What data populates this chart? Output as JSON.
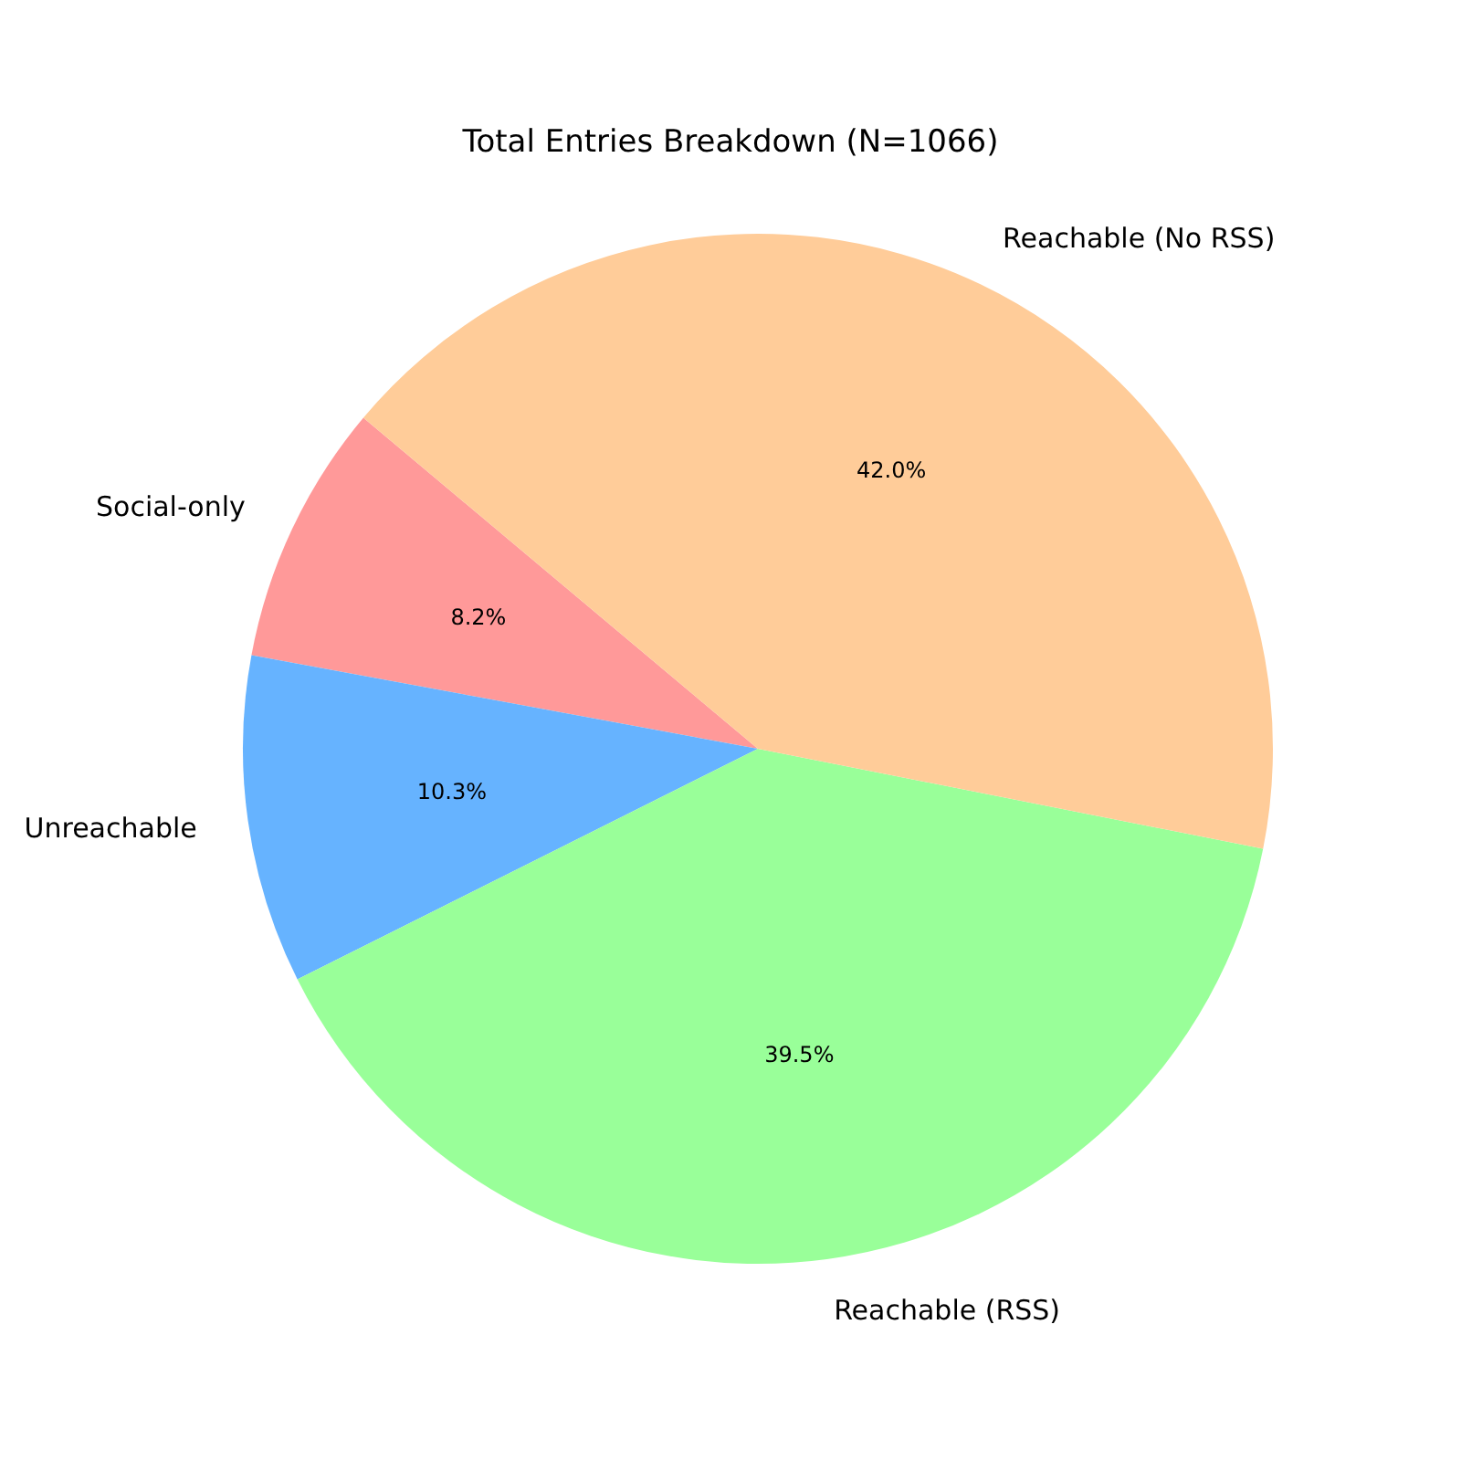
{
  "chart_data": {
    "type": "pie",
    "title": "Total Entries Breakdown (N=1066)",
    "categories": [
      "Social-only",
      "Unreachable",
      "Reachable (RSS)",
      "Reachable (No RSS)"
    ],
    "values": [
      8.2,
      10.3,
      39.5,
      42.0
    ],
    "colors": [
      "#ff9999",
      "#66b3ff",
      "#99ff99",
      "#ffcc99"
    ],
    "value_labels": [
      "8.2%",
      "10.3%",
      "39.5%",
      "42.0%"
    ],
    "legend": false
  }
}
